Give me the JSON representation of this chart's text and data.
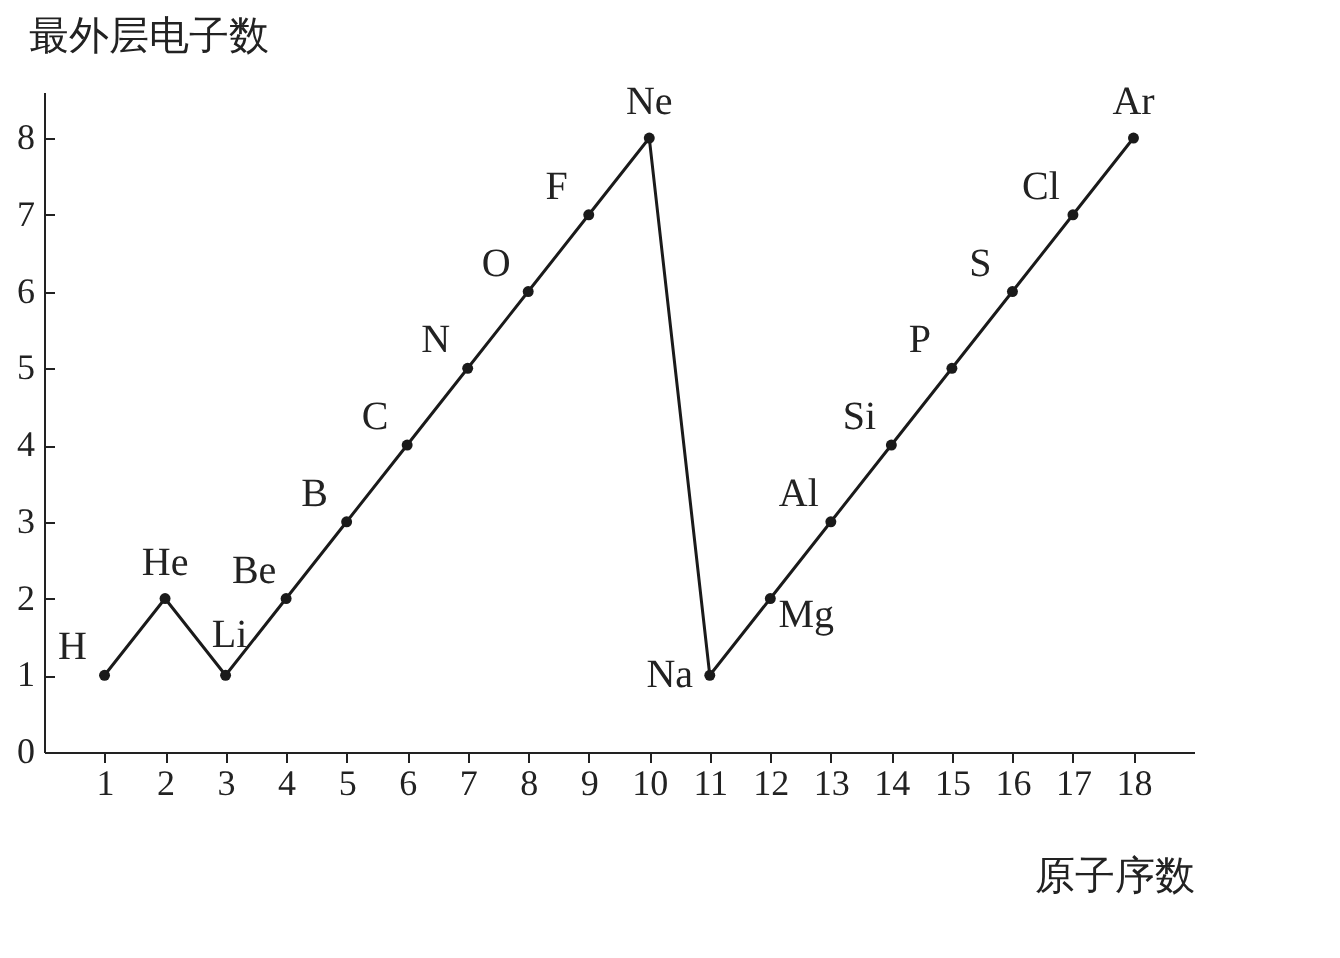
{
  "chart_data": {
    "type": "line",
    "xlabel": "原子序数",
    "ylabel": "最外层电子数",
    "x": [
      1,
      2,
      3,
      4,
      5,
      6,
      7,
      8,
      9,
      10,
      11,
      12,
      13,
      14,
      15,
      16,
      17,
      18
    ],
    "values": [
      1,
      2,
      1,
      2,
      3,
      4,
      5,
      6,
      7,
      8,
      1,
      2,
      3,
      4,
      5,
      6,
      7,
      8
    ],
    "color": "#1a1a1a",
    "marker": "circle",
    "line_style": "solid",
    "grid": false,
    "xlim": [
      0,
      19
    ],
    "xticks": [
      1,
      2,
      3,
      4,
      5,
      6,
      7,
      8,
      9,
      10,
      11,
      12,
      13,
      14,
      15,
      16,
      17,
      18
    ],
    "ylim": [
      0,
      8.6
    ],
    "yticks": [
      0,
      1,
      2,
      3,
      4,
      5,
      6,
      7,
      8
    ],
    "annotations": [
      {
        "text": "H",
        "x": 1,
        "y": 1
      },
      {
        "text": "He",
        "x": 2,
        "y": 2
      },
      {
        "text": "Li",
        "x": 3,
        "y": 1
      },
      {
        "text": "Be",
        "x": 4,
        "y": 2
      },
      {
        "text": "B",
        "x": 5,
        "y": 3
      },
      {
        "text": "C",
        "x": 6,
        "y": 4
      },
      {
        "text": "N",
        "x": 7,
        "y": 5
      },
      {
        "text": "O",
        "x": 8,
        "y": 6
      },
      {
        "text": "F",
        "x": 9,
        "y": 7
      },
      {
        "text": "Ne",
        "x": 10,
        "y": 8
      },
      {
        "text": "Na",
        "x": 11,
        "y": 1
      },
      {
        "text": "Mg",
        "x": 12,
        "y": 2
      },
      {
        "text": "Al",
        "x": 13,
        "y": 3
      },
      {
        "text": "Si",
        "x": 14,
        "y": 4
      },
      {
        "text": "P",
        "x": 15,
        "y": 5
      },
      {
        "text": "S",
        "x": 16,
        "y": 6
      },
      {
        "text": "Cl",
        "x": 17,
        "y": 7
      },
      {
        "text": "Ar",
        "x": 18,
        "y": 8
      }
    ]
  }
}
